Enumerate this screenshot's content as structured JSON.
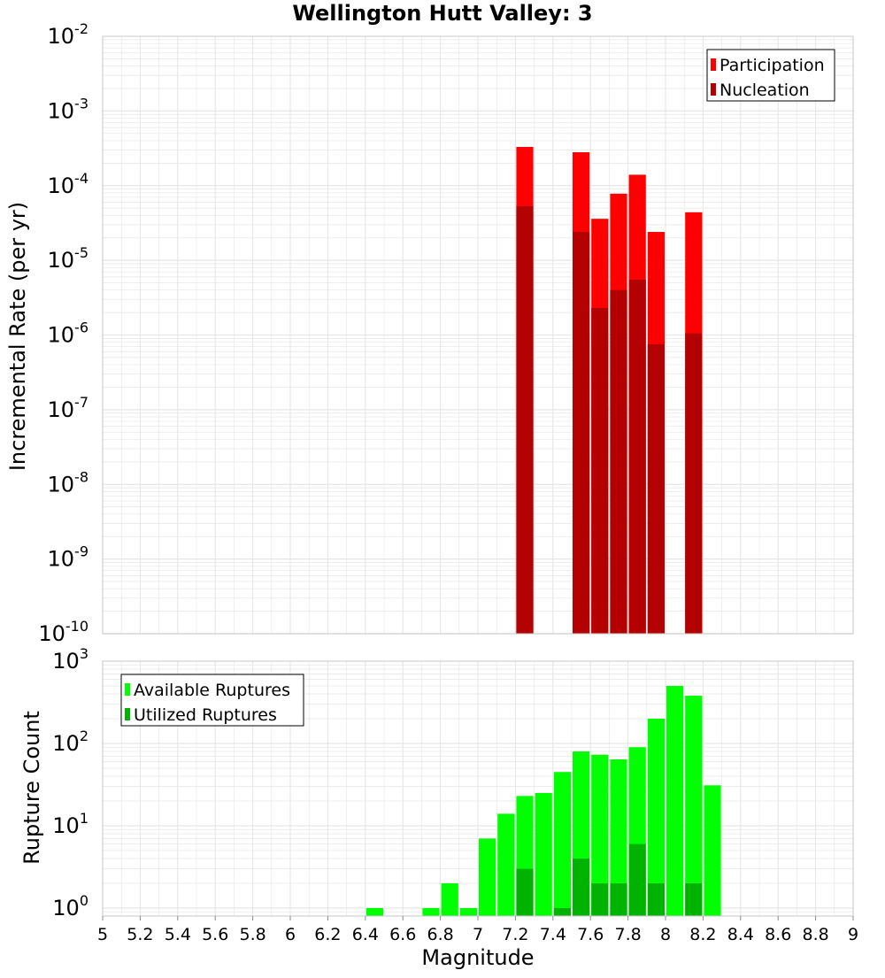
{
  "title": "Wellington Hutt Valley: 3",
  "colors": {
    "participation": "#ff0000",
    "nucleation": "#b30000",
    "available": "#00ff00",
    "utilized": "#00b300",
    "grid": "#e6e6e6",
    "frame": "#c8c8c8"
  },
  "chart_data": [
    {
      "type": "bar",
      "panel": "top",
      "ylabel": "Incremental Rate (per yr)",
      "yscale": "log",
      "ylim": [
        1e-10,
        0.01
      ],
      "xlim": [
        5,
        9
      ],
      "y_tick_exponents": [
        -10,
        -9,
        -8,
        -7,
        -6,
        -5,
        -4,
        -3,
        -2
      ],
      "legend": {
        "placement": "top-right",
        "entries": [
          "Participation",
          "Nucleation"
        ]
      },
      "series": [
        {
          "name": "Participation",
          "color": "#ff0000",
          "x": [
            7.25,
            7.55,
            7.65,
            7.75,
            7.85,
            7.95,
            8.15
          ],
          "values": [
            0.00033,
            0.00028,
            3.6e-05,
            7.8e-05,
            0.00014,
            2.4e-05,
            4.4e-05
          ]
        },
        {
          "name": "Nucleation",
          "color": "#b30000",
          "x": [
            7.25,
            7.55,
            7.65,
            7.75,
            7.85,
            7.95,
            8.15
          ],
          "values": [
            5.3e-05,
            2.4e-05,
            2.3e-06,
            4e-06,
            5.5e-06,
            7.5e-07,
            1.05e-06
          ]
        }
      ]
    },
    {
      "type": "bar",
      "panel": "bottom",
      "ylabel": "Rupture Count",
      "xlabel": "Magnitude",
      "yscale": "log",
      "ylim": [
        0.8,
        1000
      ],
      "xlim": [
        5,
        9
      ],
      "y_tick_exponents": [
        0,
        1,
        2,
        3
      ],
      "x_ticks": [
        "5",
        "5.2",
        "5.4",
        "5.6",
        "5.8",
        "6",
        "6.2",
        "6.4",
        "6.6",
        "6.8",
        "7",
        "7.2",
        "7.4",
        "7.6",
        "7.8",
        "8",
        "8.2",
        "8.4",
        "8.6",
        "8.8",
        "9"
      ],
      "legend": {
        "placement": "top-left",
        "entries": [
          "Available Ruptures",
          "Utilized Ruptures"
        ]
      },
      "series": [
        {
          "name": "Available Ruptures",
          "color": "#00ff00",
          "x": [
            6.45,
            6.75,
            6.85,
            6.95,
            7.05,
            7.15,
            7.25,
            7.35,
            7.45,
            7.55,
            7.65,
            7.75,
            7.85,
            7.95,
            8.05,
            8.15,
            8.25
          ],
          "values": [
            1,
            1,
            2,
            1,
            7,
            14,
            23,
            25,
            45,
            80,
            73,
            64,
            90,
            200,
            500,
            380,
            31
          ]
        },
        {
          "name": "Utilized Ruptures",
          "color": "#00b300",
          "x": [
            7.25,
            7.45,
            7.55,
            7.65,
            7.75,
            7.85,
            7.95,
            8.15
          ],
          "values": [
            3,
            1,
            4,
            2,
            2,
            6,
            2,
            2
          ]
        }
      ]
    }
  ]
}
